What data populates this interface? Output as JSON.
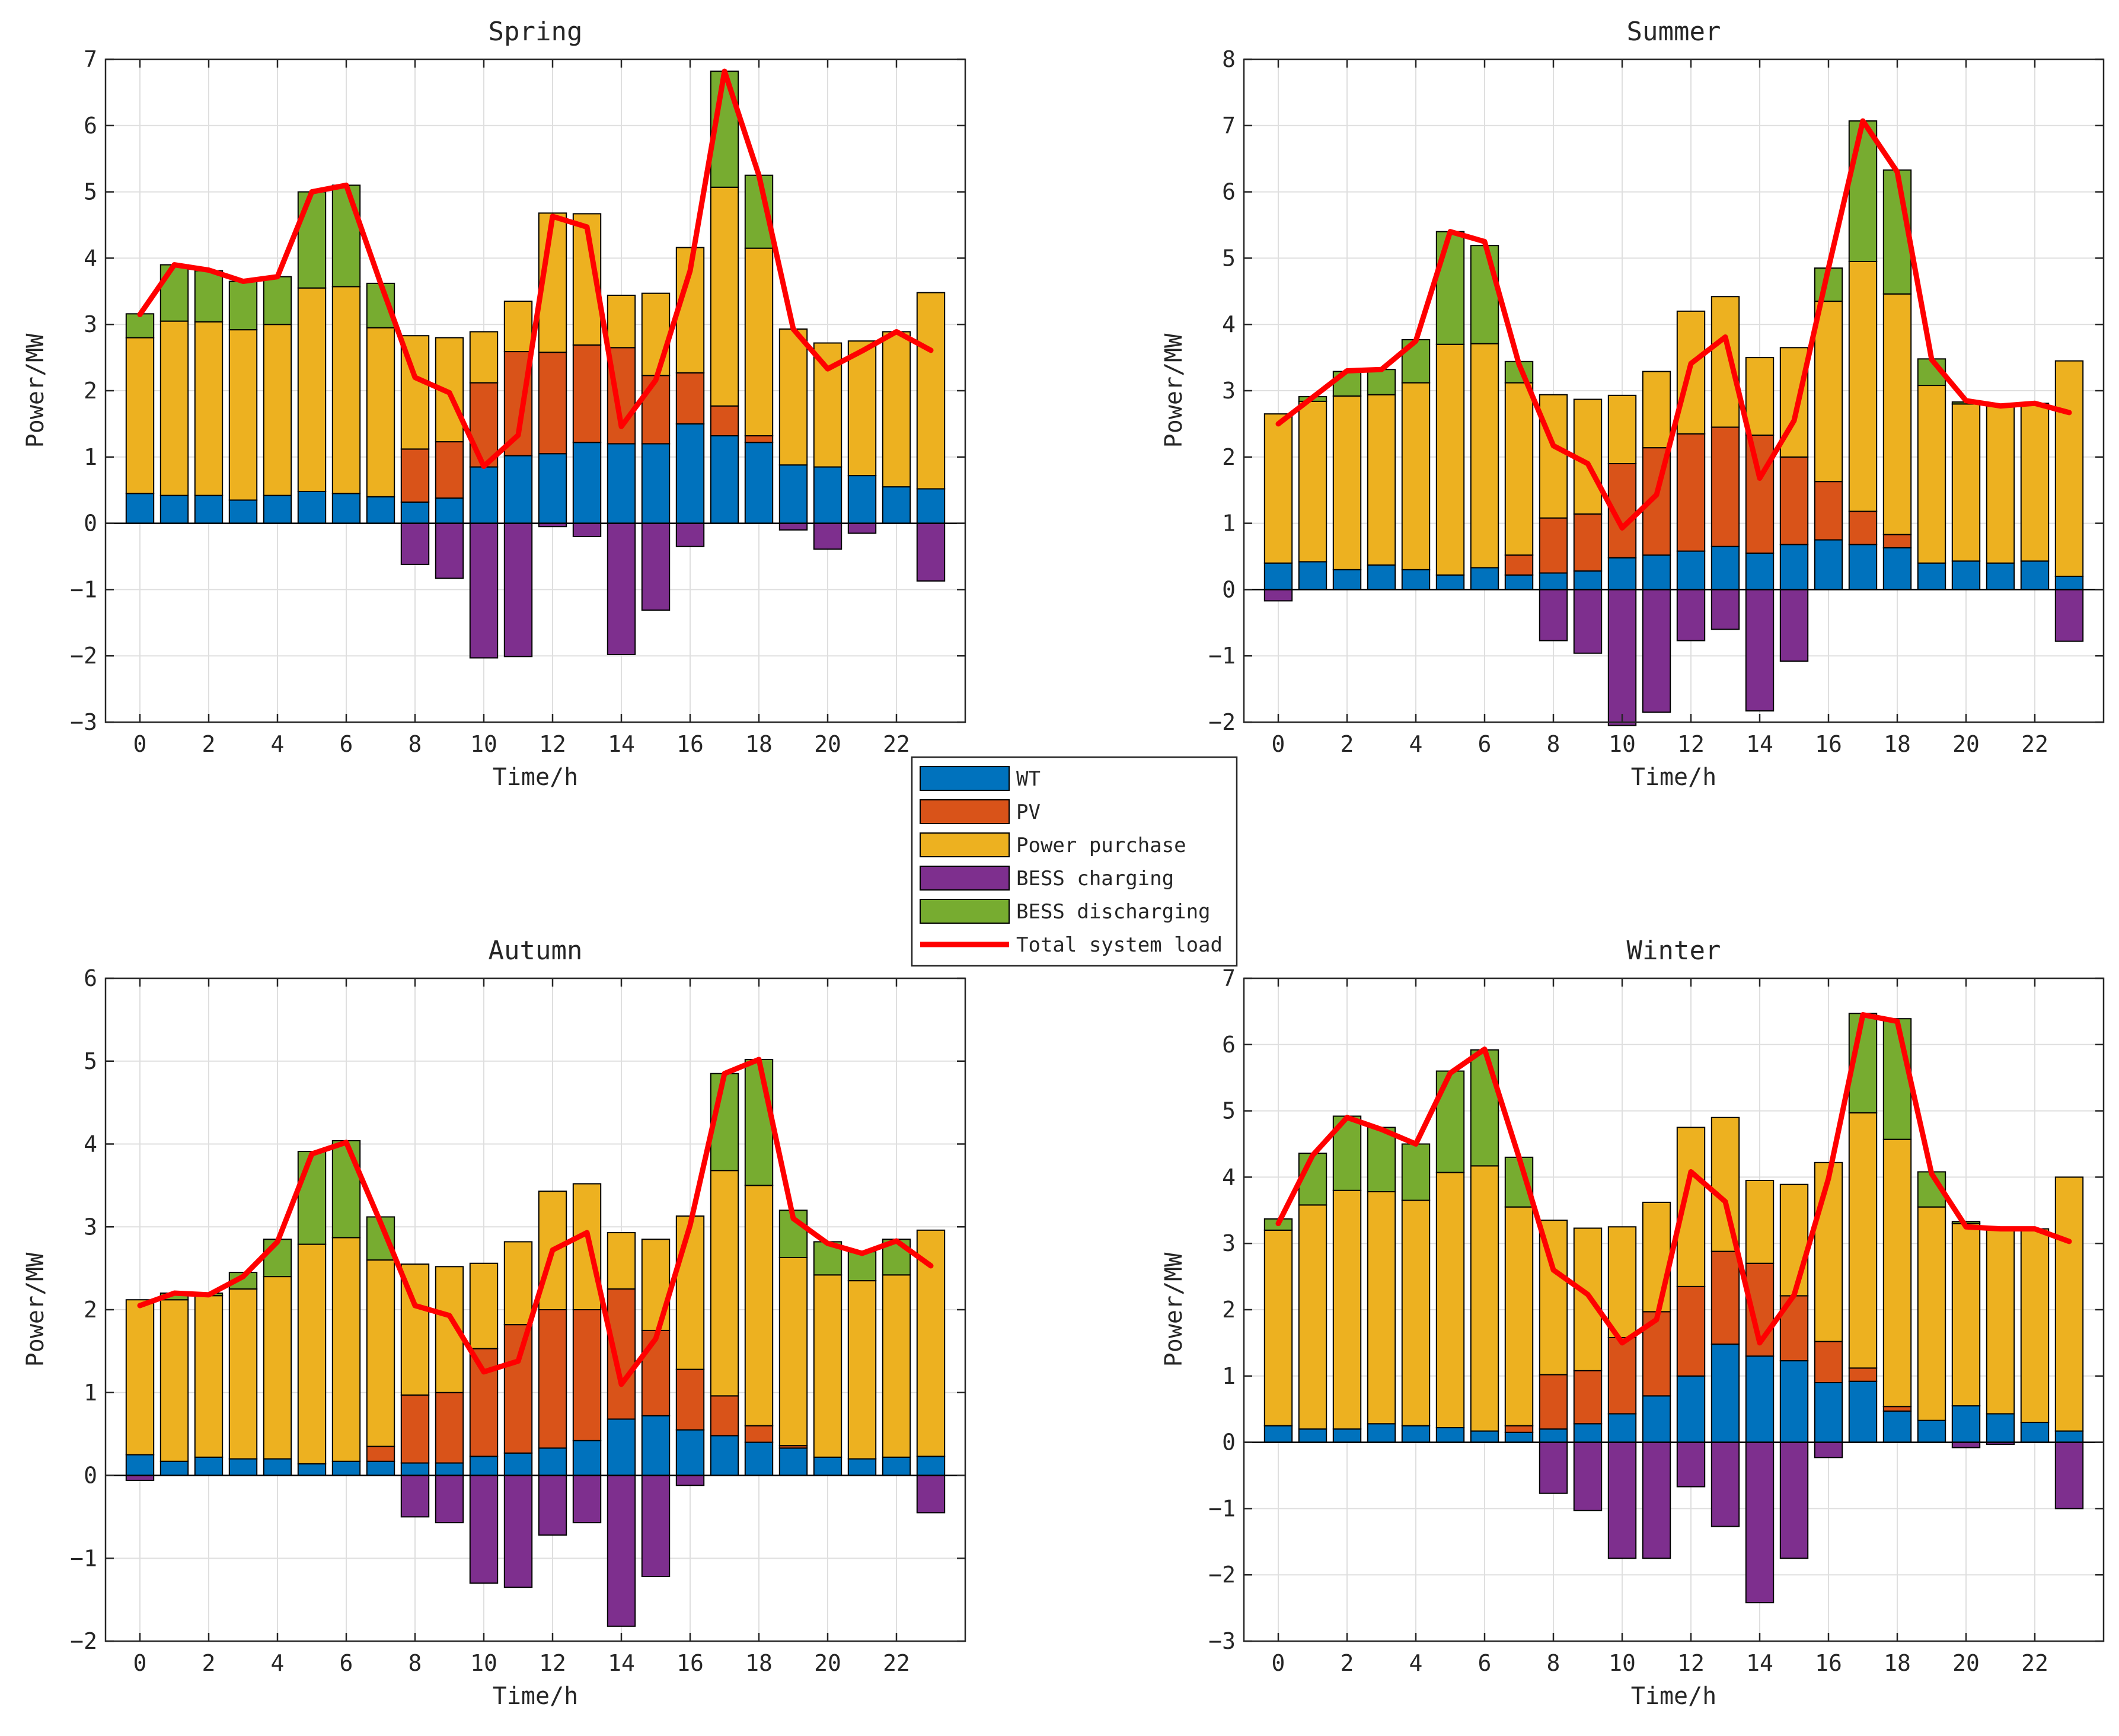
{
  "legend": {
    "items": [
      {
        "key": "wt",
        "label": "WT",
        "color": "#0072BD",
        "kind": "patch"
      },
      {
        "key": "pv",
        "label": "PV",
        "color": "#D95319",
        "kind": "patch"
      },
      {
        "key": "purchase",
        "label": "Power purchase",
        "color": "#EDB120",
        "kind": "patch"
      },
      {
        "key": "charge",
        "label": "BESS charging",
        "color": "#7E2F8E",
        "kind": "patch"
      },
      {
        "key": "discharge",
        "label": "BESS discharging",
        "color": "#77AC30",
        "kind": "patch"
      },
      {
        "key": "load",
        "label": "Total system load",
        "color": "#FF0000",
        "kind": "line"
      }
    ]
  },
  "chart_data": [
    {
      "type": "bar",
      "stacked": true,
      "title": "Spring",
      "xlabel": "Time/h",
      "ylabel": "Power/MW",
      "ylim": [
        -3,
        7
      ],
      "yticks": [
        -3,
        -2,
        -1,
        0,
        1,
        2,
        3,
        4,
        5,
        6,
        7
      ],
      "xticks": [
        0,
        2,
        4,
        6,
        8,
        10,
        12,
        14,
        16,
        18,
        20,
        22
      ],
      "hours": [
        0,
        1,
        2,
        3,
        4,
        5,
        6,
        7,
        8,
        9,
        10,
        11,
        12,
        13,
        14,
        15,
        16,
        17,
        18,
        19,
        20,
        21,
        22,
        23
      ],
      "series": [
        {
          "name": "WT",
          "values": [
            0.45,
            0.42,
            0.42,
            0.35,
            0.42,
            0.48,
            0.45,
            0.4,
            0.32,
            0.38,
            0.85,
            1.02,
            1.05,
            1.22,
            1.2,
            1.2,
            1.5,
            1.32,
            1.22,
            0.88,
            0.85,
            0.72,
            0.55,
            0.52
          ]
        },
        {
          "name": "PV",
          "values": [
            0,
            0,
            0,
            0,
            0,
            0,
            0,
            0,
            0.8,
            0.85,
            1.27,
            1.57,
            1.53,
            1.47,
            1.45,
            1.03,
            0.77,
            0.45,
            0.1,
            0,
            0,
            0,
            0,
            0
          ]
        },
        {
          "name": "Power purchase",
          "values": [
            2.35,
            2.63,
            2.62,
            2.57,
            2.58,
            3.07,
            3.12,
            2.55,
            1.71,
            1.57,
            0.77,
            0.76,
            2.1,
            1.98,
            0.79,
            1.24,
            1.89,
            3.3,
            2.83,
            2.05,
            1.87,
            2.03,
            2.34,
            2.96
          ]
        },
        {
          "name": "BESS charging",
          "values": [
            0,
            0,
            0,
            0,
            0,
            0,
            0,
            0,
            -0.62,
            -0.83,
            -2.03,
            -2.01,
            -0.05,
            -0.2,
            -1.98,
            -1.31,
            -0.35,
            0,
            0,
            -0.1,
            -0.39,
            -0.15,
            0,
            -0.87
          ]
        },
        {
          "name": "BESS discharging",
          "values": [
            0.36,
            0.85,
            0.77,
            0.73,
            0.72,
            1.45,
            1.53,
            0.67,
            0,
            0,
            0,
            0,
            0,
            0,
            0,
            0,
            0,
            1.75,
            1.1,
            0,
            0,
            0,
            0,
            0
          ]
        }
      ],
      "load": [
        3.15,
        3.9,
        3.82,
        3.65,
        3.72,
        5.0,
        5.1,
        3.62,
        2.2,
        1.97,
        0.86,
        1.33,
        4.63,
        4.47,
        1.46,
        2.16,
        3.81,
        6.82,
        5.25,
        2.93,
        2.33,
        2.6,
        2.89,
        2.61
      ]
    },
    {
      "type": "bar",
      "stacked": true,
      "title": "Summer",
      "xlabel": "Time/h",
      "ylabel": "Power/MW",
      "ylim": [
        -2,
        8
      ],
      "yticks": [
        -2,
        -1,
        0,
        1,
        2,
        3,
        4,
        5,
        6,
        7,
        8
      ],
      "xticks": [
        0,
        2,
        4,
        6,
        8,
        10,
        12,
        14,
        16,
        18,
        20,
        22
      ],
      "hours": [
        0,
        1,
        2,
        3,
        4,
        5,
        6,
        7,
        8,
        9,
        10,
        11,
        12,
        13,
        14,
        15,
        16,
        17,
        18,
        19,
        20,
        21,
        22,
        23
      ],
      "series": [
        {
          "name": "WT",
          "values": [
            0.4,
            0.42,
            0.3,
            0.37,
            0.3,
            0.22,
            0.33,
            0.22,
            0.25,
            0.28,
            0.48,
            0.52,
            0.58,
            0.65,
            0.55,
            0.68,
            0.75,
            0.68,
            0.63,
            0.4,
            0.43,
            0.4,
            0.43,
            0.2
          ]
        },
        {
          "name": "PV",
          "values": [
            0,
            0,
            0,
            0,
            0,
            0,
            0,
            0.3,
            0.83,
            0.86,
            1.42,
            1.62,
            1.77,
            1.8,
            1.78,
            1.32,
            0.88,
            0.5,
            0.2,
            0,
            0,
            0,
            0,
            0
          ]
        },
        {
          "name": "Power purchase",
          "values": [
            2.25,
            2.42,
            2.62,
            2.57,
            2.82,
            3.48,
            3.38,
            2.6,
            1.86,
            1.73,
            1.03,
            1.15,
            1.85,
            1.97,
            1.17,
            1.65,
            2.72,
            3.77,
            3.63,
            2.68,
            2.37,
            2.38,
            2.38,
            3.25
          ]
        },
        {
          "name": "BESS charging",
          "values": [
            -0.17,
            0,
            0,
            0,
            0,
            0,
            0,
            0,
            -0.77,
            -0.96,
            -2.05,
            -1.85,
            -0.77,
            -0.6,
            -1.83,
            -1.08,
            0,
            0,
            0,
            0,
            0,
            0,
            0,
            -0.78
          ]
        },
        {
          "name": "BESS discharging",
          "values": [
            0,
            0.07,
            0.37,
            0.38,
            0.65,
            1.7,
            1.48,
            0.32,
            0,
            0,
            0,
            0,
            0,
            0,
            0,
            0,
            0.5,
            2.12,
            1.87,
            0.4,
            0.03,
            0,
            0,
            0
          ]
        }
      ],
      "load": [
        2.5,
        2.9,
        3.3,
        3.32,
        3.75,
        5.4,
        5.25,
        3.4,
        2.17,
        1.9,
        0.93,
        1.43,
        3.41,
        3.81,
        1.68,
        2.55,
        4.85,
        7.07,
        6.3,
        3.47,
        2.85,
        2.77,
        2.81,
        2.67
      ]
    },
    {
      "type": "bar",
      "stacked": true,
      "title": "Autumn",
      "xlabel": "Time/h",
      "ylabel": "Power/MW",
      "ylim": [
        -2,
        6
      ],
      "yticks": [
        -2,
        -1,
        0,
        1,
        2,
        3,
        4,
        5,
        6
      ],
      "xticks": [
        0,
        2,
        4,
        6,
        8,
        10,
        12,
        14,
        16,
        18,
        20,
        22
      ],
      "hours": [
        0,
        1,
        2,
        3,
        4,
        5,
        6,
        7,
        8,
        9,
        10,
        11,
        12,
        13,
        14,
        15,
        16,
        17,
        18,
        19,
        20,
        21,
        22,
        23
      ],
      "series": [
        {
          "name": "WT",
          "values": [
            0.25,
            0.17,
            0.22,
            0.2,
            0.2,
            0.14,
            0.17,
            0.17,
            0.15,
            0.15,
            0.23,
            0.27,
            0.33,
            0.42,
            0.68,
            0.72,
            0.55,
            0.48,
            0.4,
            0.33,
            0.22,
            0.2,
            0.22,
            0.23
          ]
        },
        {
          "name": "PV",
          "values": [
            0,
            0,
            0,
            0,
            0,
            0,
            0,
            0.18,
            0.82,
            0.85,
            1.3,
            1.55,
            1.67,
            1.58,
            1.57,
            1.03,
            0.73,
            0.48,
            0.2,
            0.03,
            0,
            0,
            0,
            0
          ]
        },
        {
          "name": "Power purchase",
          "values": [
            1.87,
            1.95,
            1.95,
            2.05,
            2.2,
            2.65,
            2.7,
            2.25,
            1.58,
            1.52,
            1.03,
            1.0,
            1.43,
            1.52,
            0.68,
            1.1,
            1.85,
            2.72,
            2.9,
            2.27,
            2.2,
            2.15,
            2.2,
            2.73
          ]
        },
        {
          "name": "BESS charging",
          "values": [
            -0.06,
            0,
            0,
            0,
            0,
            0,
            0,
            0,
            -0.5,
            -0.57,
            -1.3,
            -1.35,
            -0.72,
            -0.57,
            -1.82,
            -1.22,
            -0.12,
            0,
            0,
            0,
            0,
            0,
            0,
            -0.45
          ]
        },
        {
          "name": "BESS discharging",
          "values": [
            0,
            0.08,
            0.03,
            0.2,
            0.45,
            1.12,
            1.17,
            0.52,
            0,
            0,
            0,
            0,
            0,
            0,
            0,
            0,
            0,
            1.17,
            1.52,
            0.57,
            0.4,
            0.35,
            0.43,
            0
          ]
        }
      ],
      "load": [
        2.05,
        2.2,
        2.18,
        2.4,
        2.82,
        3.88,
        4.02,
        3.05,
        2.05,
        1.93,
        1.25,
        1.38,
        2.72,
        2.93,
        1.1,
        1.65,
        3.02,
        4.85,
        5.02,
        3.1,
        2.8,
        2.68,
        2.83,
        2.53
      ]
    },
    {
      "type": "bar",
      "stacked": true,
      "title": "Winter",
      "xlabel": "Time/h",
      "ylabel": "Power/MW",
      "ylim": [
        -3,
        7
      ],
      "yticks": [
        -3,
        -2,
        -1,
        0,
        1,
        2,
        3,
        4,
        5,
        6,
        7
      ],
      "xticks": [
        0,
        2,
        4,
        6,
        8,
        10,
        12,
        14,
        16,
        18,
        20,
        22
      ],
      "hours": [
        0,
        1,
        2,
        3,
        4,
        5,
        6,
        7,
        8,
        9,
        10,
        11,
        12,
        13,
        14,
        15,
        16,
        17,
        18,
        19,
        20,
        21,
        22,
        23
      ],
      "series": [
        {
          "name": "WT",
          "values": [
            0.25,
            0.2,
            0.2,
            0.28,
            0.25,
            0.22,
            0.17,
            0.15,
            0.2,
            0.28,
            0.43,
            0.7,
            1.0,
            1.48,
            1.3,
            1.23,
            0.9,
            0.92,
            0.47,
            0.33,
            0.55,
            0.43,
            0.3,
            0.17
          ]
        },
        {
          "name": "PV",
          "values": [
            0,
            0,
            0,
            0,
            0,
            0,
            0,
            0.1,
            0.82,
            0.8,
            1.15,
            1.27,
            1.35,
            1.4,
            1.4,
            0.98,
            0.62,
            0.2,
            0.07,
            0,
            0,
            0,
            0,
            0
          ]
        },
        {
          "name": "Power purchase",
          "values": [
            2.95,
            3.38,
            3.6,
            3.5,
            3.4,
            3.85,
            4.0,
            3.3,
            2.33,
            2.15,
            1.67,
            1.65,
            2.4,
            2.02,
            1.25,
            1.68,
            2.7,
            3.85,
            4.03,
            3.22,
            2.75,
            2.8,
            2.92,
            3.83
          ]
        },
        {
          "name": "BESS charging",
          "values": [
            0,
            0,
            0,
            0,
            0,
            0,
            0,
            0,
            -0.77,
            -1.03,
            -1.75,
            -1.75,
            -0.67,
            -1.27,
            -2.42,
            -1.75,
            -0.23,
            0,
            0,
            0,
            -0.08,
            -0.03,
            0,
            -1.0
          ]
        },
        {
          "name": "BESS discharging",
          "values": [
            0.17,
            0.78,
            1.12,
            0.97,
            0.85,
            1.53,
            1.75,
            0.75,
            0,
            0,
            0,
            0,
            0,
            0,
            0,
            0,
            0,
            1.5,
            1.82,
            0.53,
            0.03,
            0,
            0,
            0
          ]
        }
      ],
      "load": [
        3.3,
        4.33,
        4.9,
        4.72,
        4.5,
        5.57,
        5.93,
        4.3,
        2.6,
        2.23,
        1.5,
        1.85,
        4.08,
        3.63,
        1.5,
        2.22,
        3.98,
        6.45,
        6.35,
        4.05,
        3.25,
        3.22,
        3.22,
        3.03
      ]
    }
  ]
}
